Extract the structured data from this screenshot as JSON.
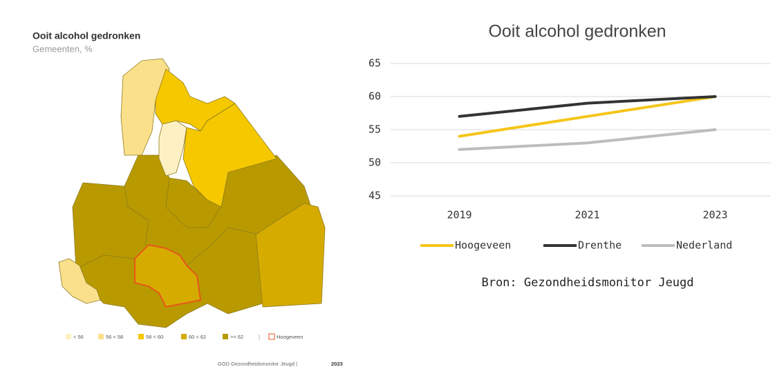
{
  "map": {
    "title": "Ooit alcohol gedronken",
    "subtitle": "Gemeenten, %",
    "legend": [
      {
        "label": "< 56",
        "color": "#fdf1c4"
      },
      {
        "label": "56 < 58",
        "color": "#fbe08c"
      },
      {
        "label": "58 < 60",
        "color": "#f5c800"
      },
      {
        "label": "60 < 62",
        "color": "#d6ab00"
      },
      {
        "label": ">= 62",
        "color": "#b89a00"
      }
    ],
    "separator": "|",
    "highlight": {
      "label": "Hoogeveen",
      "color": "#e8501e"
    },
    "source": "GGD Gezondheidsmonitor Jeugd |",
    "source_year": "2023"
  },
  "chart_data": {
    "type": "line",
    "title": "Ooit alcohol gedronken",
    "categories": [
      "2019",
      "2021",
      "2023"
    ],
    "series": [
      {
        "name": "Hoogeveen",
        "color": "#f5c518",
        "values": [
          54,
          57,
          60
        ]
      },
      {
        "name": "Drenthe",
        "color": "#333333",
        "values": [
          57,
          59,
          60
        ]
      },
      {
        "name": "Nederland",
        "color": "#bdbdbd",
        "values": [
          52,
          53,
          55
        ]
      }
    ],
    "ylim": [
      45,
      65
    ],
    "yticks": [
      45,
      50,
      55,
      60,
      65
    ],
    "grid": true,
    "legend": "bottom",
    "annotation": "Bron: Gezondheidsmonitor Jeugd"
  }
}
